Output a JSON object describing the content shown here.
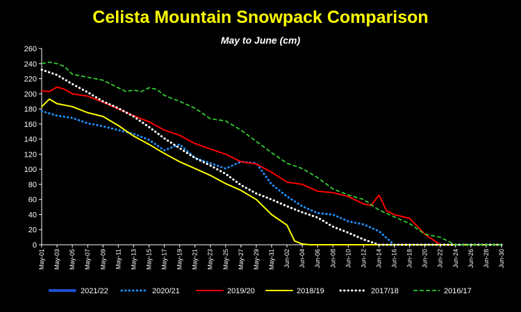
{
  "chart_data": {
    "type": "line",
    "title": "Celista Mountain Snowpack Comparison",
    "subtitle": "May to June   (cm)",
    "xlabel": "",
    "ylabel": "",
    "ylim": [
      0,
      260
    ],
    "yticks": [
      0,
      20,
      40,
      60,
      80,
      100,
      120,
      140,
      160,
      180,
      200,
      220,
      240,
      260
    ],
    "x": [
      "May-01",
      "May-03",
      "May-05",
      "May-07",
      "May-09",
      "May-11",
      "May-13",
      "May-15",
      "May-17",
      "May-19",
      "May-21",
      "May-23",
      "May-25",
      "May-27",
      "May-29",
      "May-31",
      "Jun-02",
      "Jun-04",
      "Jun-06",
      "Jun-08",
      "Jun-10",
      "Jun-12",
      "Jun-14",
      "Jun-16",
      "Jun-18",
      "Jun-20",
      "Jun-22",
      "Jun-24",
      "Jun-26",
      "Jun-28",
      "Jun-30"
    ],
    "legend_position": "bottom",
    "grid": false,
    "series": [
      {
        "name": "2021/22",
        "color": "#1f4fd0",
        "style": "thick-dot",
        "x": [],
        "values": []
      },
      {
        "name": "2020/21",
        "color": "#1e90ff",
        "style": "dotted",
        "x": [
          "May-01",
          "May-03",
          "May-05",
          "May-07",
          "May-09",
          "May-11",
          "May-13",
          "May-15",
          "May-17",
          "May-19",
          "May-21",
          "May-23",
          "May-25",
          "May-27",
          "May-29",
          "May-31",
          "Jun-02",
          "Jun-04",
          "Jun-06",
          "Jun-08",
          "Jun-10",
          "Jun-12",
          "Jun-14",
          "Jun-16"
        ],
        "values": [
          177,
          171,
          168,
          161,
          157,
          152,
          147,
          139,
          125,
          133,
          115,
          108,
          101,
          110,
          108,
          80,
          64,
          51,
          42,
          40,
          31,
          27,
          18,
          0
        ]
      },
      {
        "name": "2019/20",
        "color": "#ff0000",
        "style": "solid",
        "x": [
          "May-01",
          "May-02",
          "May-03",
          "May-04",
          "May-05",
          "May-07",
          "May-09",
          "May-11",
          "May-13",
          "May-15",
          "May-17",
          "May-19",
          "May-21",
          "May-23",
          "May-25",
          "May-27",
          "May-29",
          "May-31",
          "Jun-02",
          "Jun-04",
          "Jun-06",
          "Jun-08",
          "Jun-10",
          "Jun-12",
          "Jun-13",
          "Jun-14",
          "Jun-15",
          "Jun-16",
          "Jun-18",
          "Jun-20",
          "Jun-22"
        ],
        "values": [
          204,
          203,
          209,
          206,
          200,
          197,
          189,
          180,
          171,
          163,
          152,
          145,
          134,
          127,
          120,
          110,
          107,
          96,
          83,
          80,
          71,
          69,
          64,
          54,
          52,
          66,
          45,
          40,
          35,
          14,
          0
        ]
      },
      {
        "name": "2018/19",
        "color": "#ffff00",
        "style": "solid",
        "x": [
          "May-01",
          "May-02",
          "May-03",
          "May-05",
          "May-07",
          "May-09",
          "May-11",
          "May-13",
          "May-15",
          "May-17",
          "May-19",
          "May-21",
          "May-23",
          "May-25",
          "May-27",
          "May-29",
          "May-31",
          "Jun-02",
          "Jun-03",
          "Jun-04",
          "Jun-05"
        ],
        "values": [
          183,
          193,
          187,
          183,
          175,
          170,
          158,
          144,
          133,
          121,
          110,
          101,
          92,
          81,
          72,
          60,
          40,
          26,
          5,
          1,
          0
        ]
      },
      {
        "name": "2017/18",
        "color": "#ffffff",
        "style": "dotted",
        "x": [
          "May-01",
          "May-03",
          "May-05",
          "May-07",
          "May-09",
          "May-11",
          "May-13",
          "May-15",
          "May-17",
          "May-19",
          "May-21",
          "May-23",
          "May-25",
          "May-27",
          "May-29",
          "May-31",
          "Jun-02",
          "Jun-04",
          "Jun-06",
          "Jun-08",
          "Jun-10",
          "Jun-12",
          "Jun-14"
        ],
        "values": [
          232,
          225,
          213,
          202,
          190,
          181,
          170,
          156,
          141,
          128,
          115,
          105,
          94,
          79,
          68,
          60,
          51,
          43,
          36,
          24,
          16,
          7,
          0
        ]
      },
      {
        "name": "2016/17",
        "color": "#33cc33",
        "style": "dashed",
        "x": [
          "May-01",
          "May-02",
          "May-03",
          "May-04",
          "May-05",
          "May-07",
          "May-09",
          "May-11",
          "May-12",
          "May-13",
          "May-14",
          "May-15",
          "May-16",
          "May-17",
          "May-19",
          "May-21",
          "May-23",
          "May-25",
          "May-27",
          "May-29",
          "May-31",
          "Jun-02",
          "Jun-04",
          "Jun-06",
          "Jun-08",
          "Jun-10",
          "Jun-12",
          "Jun-14",
          "Jun-16",
          "Jun-18",
          "Jun-20",
          "Jun-22",
          "Jun-24"
        ],
        "values": [
          240,
          242,
          240,
          236,
          226,
          222,
          218,
          208,
          203,
          205,
          203,
          208,
          206,
          198,
          190,
          181,
          167,
          164,
          152,
          137,
          122,
          108,
          101,
          89,
          74,
          66,
          60,
          46,
          37,
          28,
          14,
          10,
          0
        ]
      }
    ]
  }
}
